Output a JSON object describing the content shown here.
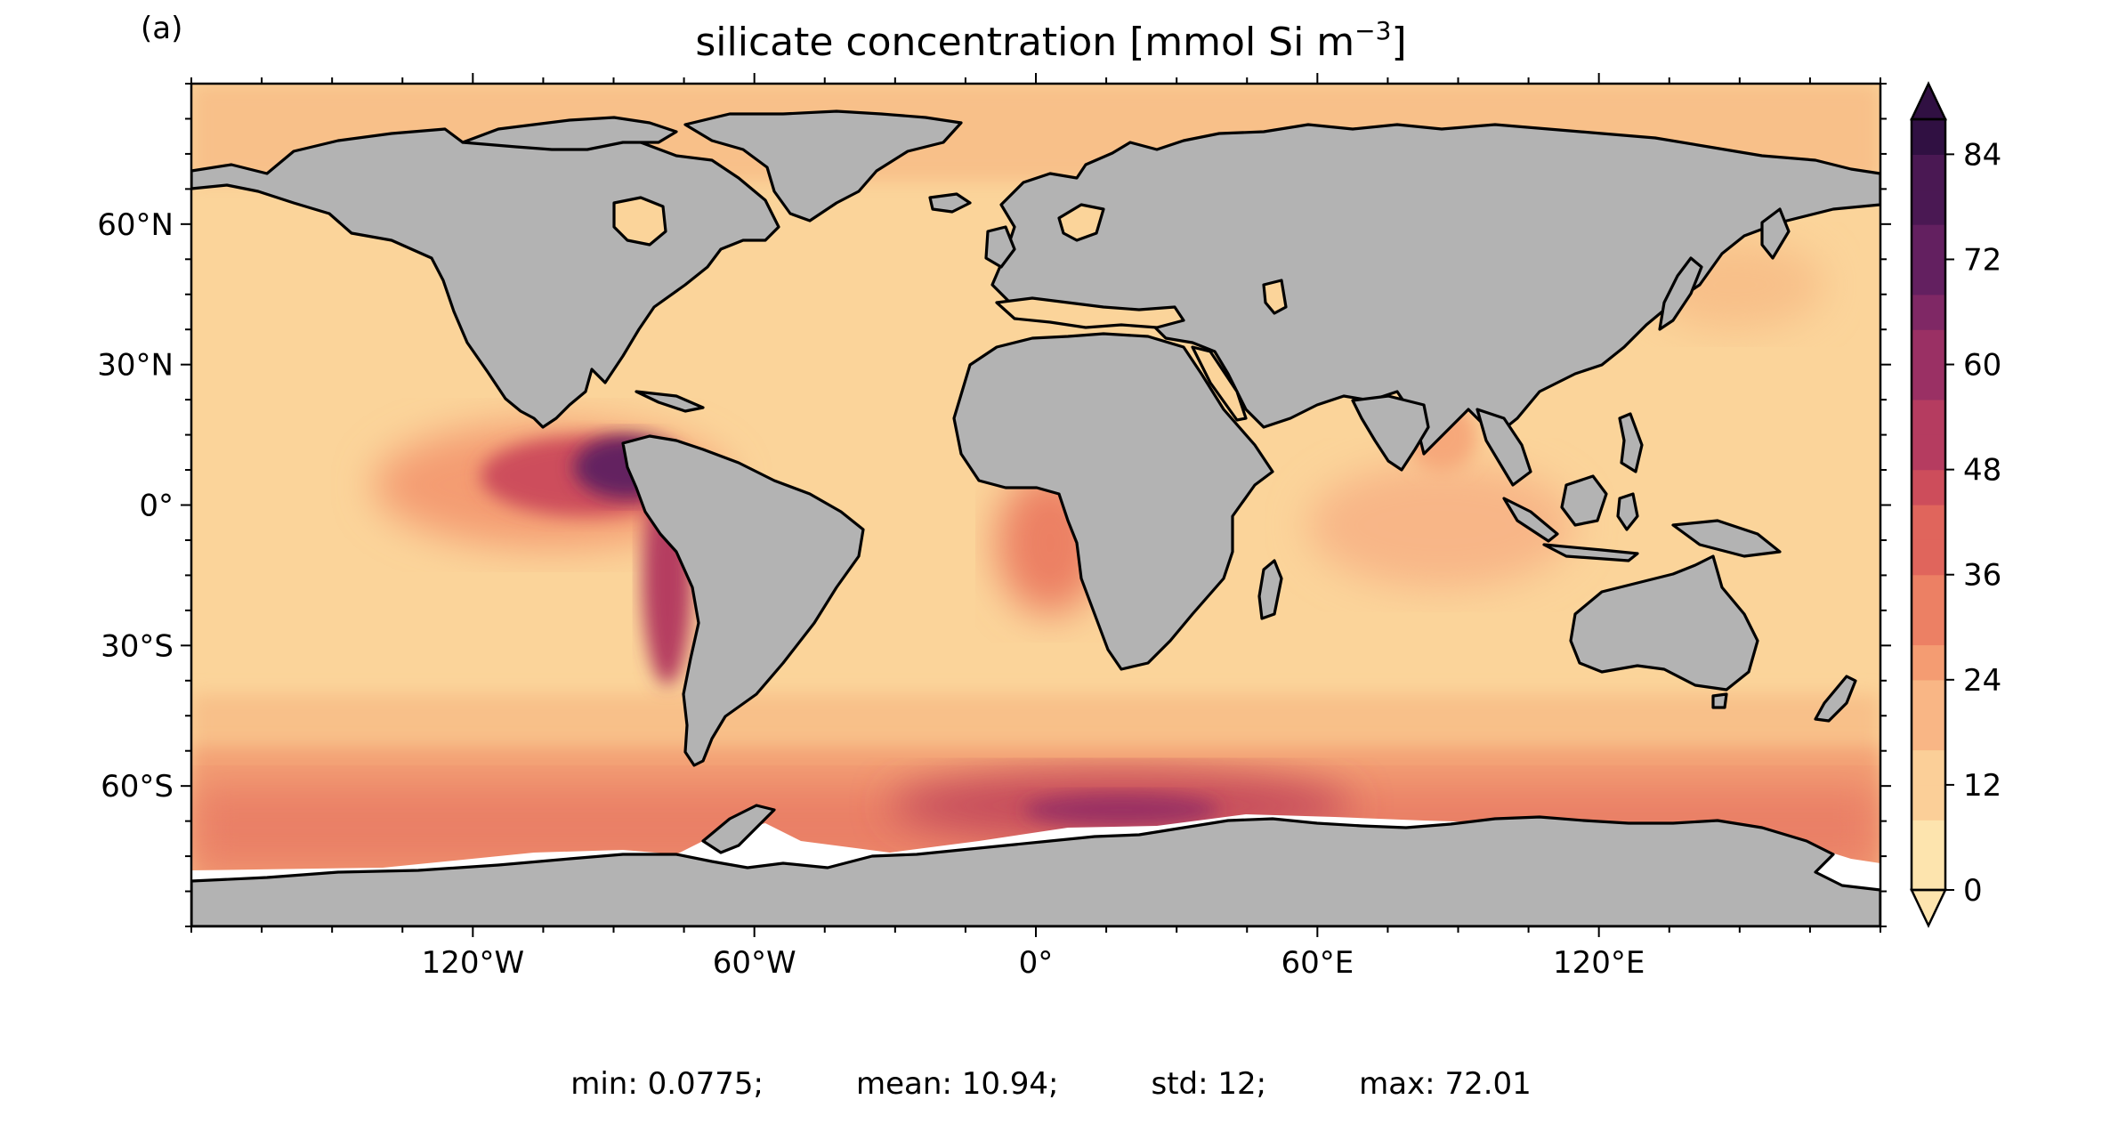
{
  "panel_label": "(a)",
  "title": {
    "main": "silicate concentration [mmol Si m",
    "sup": "−3",
    "close": "]"
  },
  "map": {
    "projection": "PlateCarree",
    "lon_range": [
      -180,
      180
    ],
    "lat_range": [
      -90,
      90
    ],
    "x_ticks": [
      "120°W",
      "60°W",
      "0°",
      "60°E",
      "120°E"
    ],
    "y_ticks": [
      "60°N",
      "30°N",
      "0°",
      "30°S",
      "60°S"
    ],
    "land_color": "#b3b3b3",
    "missing_color": "#ffffff",
    "field": "silicate concentration",
    "units": "mmol Si m−3"
  },
  "colorbar": {
    "min": 0,
    "max": 88,
    "extend": "both",
    "ticks": [
      "0",
      "12",
      "24",
      "36",
      "48",
      "60",
      "72",
      "84"
    ],
    "colormap": "magma_r",
    "level_colors": [
      "#fde4ae",
      "#fbcf98",
      "#f9b685",
      "#f49c72",
      "#ec8064",
      "#e0655c",
      "#cd4d5b",
      "#b53c60",
      "#9a3064",
      "#7f2865",
      "#632060",
      "#4a1853",
      "#301042"
    ]
  },
  "stats": {
    "min": "min: 0.0775;",
    "mean": "mean: 10.94;",
    "std": "std: 12;",
    "max": "max: 72.01"
  }
}
